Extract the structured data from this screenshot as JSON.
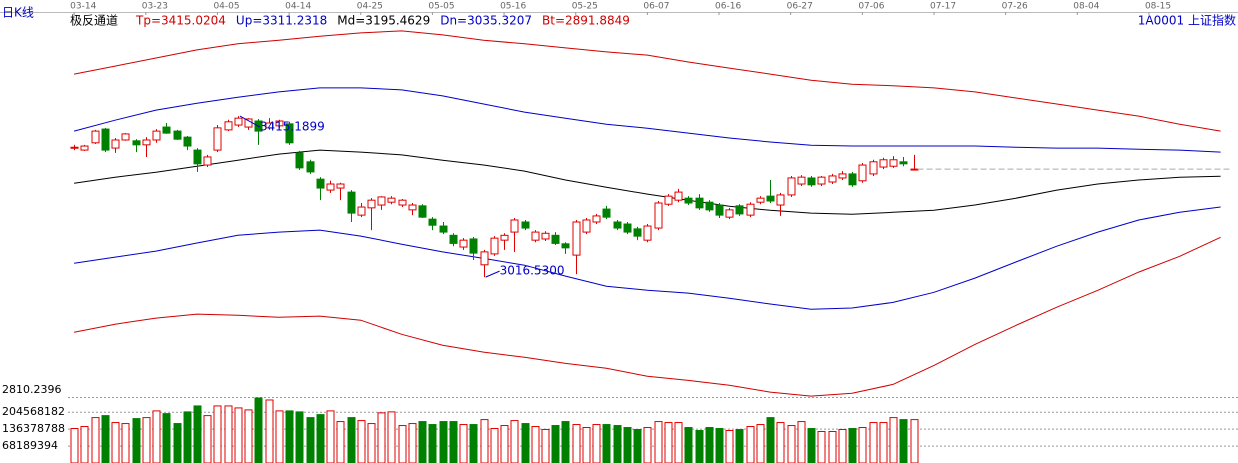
{
  "chart_data": {
    "type": "candlestick",
    "title": "极反通道",
    "period_label": "日K线",
    "symbol_label": "1A0001 上证指数",
    "price_axis_label": "2810.2396",
    "xlim": [
      -0.6,
      113.7
    ],
    "xticks": [
      {
        "value": 0,
        "label": "03-14"
      },
      {
        "value": 7,
        "label": "03-23"
      },
      {
        "value": 14,
        "label": "04-05"
      },
      {
        "value": 21,
        "label": "04-14"
      },
      {
        "value": 28,
        "label": "04-25"
      },
      {
        "value": 35,
        "label": "05-05"
      },
      {
        "value": 42,
        "label": "05-16"
      },
      {
        "value": 49,
        "label": "05-25"
      },
      {
        "value": 56,
        "label": "06-07"
      },
      {
        "value": 63,
        "label": "06-16"
      },
      {
        "value": 70,
        "label": "06-27"
      },
      {
        "value": 77,
        "label": "07-06"
      },
      {
        "value": 84,
        "label": "07-17"
      },
      {
        "value": 91,
        "label": "07-26"
      },
      {
        "value": 98,
        "label": "08-04"
      },
      {
        "value": 105,
        "label": "08-15"
      }
    ],
    "ylim": [
      2700,
      3653
    ],
    "up_color": "#e00000",
    "down_color": "#008000",
    "candles": {
      "open": [
        3336,
        3331,
        3349,
        3383,
        3336,
        3356,
        3354,
        3344,
        3356,
        3388,
        3378,
        3363,
        3331,
        3294,
        3331,
        3381,
        3393,
        3388,
        3403,
        3386,
        3391,
        3396,
        3324,
        3302,
        3259,
        3232,
        3237,
        3227,
        3170,
        3188,
        3195,
        3202,
        3195,
        3183,
        3193,
        3160,
        3143,
        3120,
        3091,
        3111,
        3047,
        3074,
        3108,
        3128,
        3153,
        3108,
        3111,
        3120,
        3099,
        3071,
        3128,
        3153,
        3185,
        3153,
        3148,
        3136,
        3108,
        3138,
        3197,
        3207,
        3212,
        3212,
        3202,
        3195,
        3165,
        3193,
        3170,
        3202,
        3217,
        3195,
        3220,
        3247,
        3262,
        3247,
        3252,
        3262,
        3272,
        3255,
        3272,
        3289,
        3291,
        3302,
        3282
      ],
      "high": [
        3344,
        3344,
        3381,
        3386,
        3361,
        3373,
        3358,
        3363,
        3383,
        3398,
        3381,
        3366,
        3336,
        3319,
        3393,
        3406,
        3415.1899,
        3410,
        3408,
        3410,
        3406,
        3401,
        3329,
        3307,
        3264,
        3255,
        3250,
        3232,
        3200,
        3212,
        3217,
        3217,
        3210,
        3200,
        3197,
        3165,
        3153,
        3125,
        3113,
        3116,
        3084,
        3118,
        3125,
        3163,
        3158,
        3133,
        3130,
        3128,
        3103,
        3158,
        3163,
        3173,
        3193,
        3158,
        3153,
        3141,
        3148,
        3205,
        3222,
        3235,
        3217,
        3222,
        3207,
        3200,
        3188,
        3197,
        3202,
        3217,
        3257,
        3225,
        3267,
        3269,
        3267,
        3267,
        3272,
        3279,
        3277,
        3299,
        3307,
        3312,
        3316,
        3314,
        3319
      ],
      "low": [
        3331,
        3329,
        3346,
        3326,
        3324,
        3354,
        3326,
        3314,
        3349,
        3371,
        3356,
        3331,
        3277,
        3289,
        3326,
        3378,
        3388,
        3381,
        3344,
        3381,
        3386,
        3344,
        3282,
        3272,
        3207,
        3225,
        3207,
        3153,
        3165,
        3133,
        3183,
        3197,
        3190,
        3170,
        3163,
        3133,
        3123,
        3093,
        3084,
        3059,
        3016.53,
        3069,
        3084,
        3079,
        3133,
        3103,
        3106,
        3096,
        3074,
        3024,
        3123,
        3148,
        3160,
        3133,
        3123,
        3108,
        3103,
        3133,
        3193,
        3202,
        3195,
        3183,
        3178,
        3163,
        3160,
        3168,
        3165,
        3197,
        3200,
        3168,
        3215,
        3242,
        3240,
        3242,
        3247,
        3257,
        3240,
        3250,
        3267,
        3284,
        3287,
        3291,
        3282
      ],
      "close": [
        3338,
        3341,
        3378,
        3331,
        3356,
        3371,
        3344,
        3356,
        3378,
        3373,
        3358,
        3341,
        3297,
        3314,
        3386,
        3401,
        3410,
        3408,
        3378,
        3398,
        3403,
        3349,
        3287,
        3277,
        3237,
        3247,
        3247,
        3175,
        3190,
        3207,
        3215,
        3212,
        3207,
        3195,
        3165,
        3145,
        3128,
        3100,
        3108,
        3076,
        3079,
        3113,
        3120,
        3158,
        3138,
        3128,
        3125,
        3100,
        3089,
        3153,
        3158,
        3168,
        3165,
        3138,
        3128,
        3118,
        3143,
        3200,
        3217,
        3227,
        3200,
        3188,
        3183,
        3170,
        3183,
        3173,
        3197,
        3212,
        3205,
        3220,
        3262,
        3264,
        3245,
        3264,
        3267,
        3272,
        3245,
        3294,
        3302,
        3307,
        3307,
        3297,
        3284
      ]
    },
    "annotations": [
      {
        "value": 3415.1899,
        "label": "3415.1899"
      },
      {
        "value": 3016.53,
        "label": "3016.5300"
      }
    ],
    "bands": {
      "x": [
        0,
        4,
        8,
        12,
        16,
        20,
        24,
        28,
        32,
        36,
        40,
        44,
        48,
        52,
        56,
        60,
        64,
        68,
        72,
        76,
        80,
        84,
        88,
        92,
        96,
        100,
        104,
        108,
        112
      ],
      "series": [
        {
          "name": "Tp=3415.0204",
          "color": "#d00000",
          "values": [
            3519,
            3539,
            3559,
            3579,
            3594,
            3603,
            3613,
            3621,
            3626,
            3616,
            3603,
            3594,
            3584,
            3574,
            3566,
            3549,
            3534,
            3519,
            3504,
            3494,
            3490,
            3485,
            3475,
            3460,
            3445,
            3430,
            3415,
            3395,
            3378
          ]
        },
        {
          "name": "Up=3311.2318",
          "color": "#0000c8",
          "values": [
            3378,
            3405,
            3430,
            3447,
            3462,
            3475,
            3485,
            3485,
            3480,
            3465,
            3445,
            3425,
            3410,
            3395,
            3385,
            3373,
            3361,
            3351,
            3343,
            3341,
            3341,
            3341,
            3341,
            3338,
            3336,
            3336,
            3333,
            3331,
            3326
          ]
        },
        {
          "name": "Md=3195.4629",
          "color": "#000000",
          "values": [
            3249,
            3264,
            3276,
            3291,
            3306,
            3321,
            3331,
            3326,
            3319,
            3306,
            3294,
            3279,
            3257,
            3239,
            3222,
            3207,
            3192,
            3182,
            3175,
            3172,
            3177,
            3182,
            3195,
            3212,
            3232,
            3247,
            3257,
            3264,
            3266
          ]
        },
        {
          "name": "Dn=3035.3207",
          "color": "#0000c8",
          "values": [
            3051,
            3066,
            3081,
            3101,
            3120,
            3128,
            3133,
            3118,
            3098,
            3079,
            3063,
            3046,
            3019,
            2994,
            2984,
            2977,
            2964,
            2950,
            2937,
            2940,
            2954,
            2979,
            3014,
            3054,
            3093,
            3128,
            3158,
            3177,
            3190
          ]
        },
        {
          "name": "Bt=2891.8849",
          "color": "#d00000",
          "values": [
            2880,
            2900,
            2915,
            2925,
            2922,
            2917,
            2920,
            2910,
            2875,
            2848,
            2831,
            2818,
            2803,
            2791,
            2771,
            2761,
            2749,
            2732,
            2722,
            2729,
            2751,
            2798,
            2850,
            2897,
            2942,
            2984,
            3029,
            3068,
            3115
          ]
        }
      ]
    },
    "volume": {
      "ylim": [
        0,
        266000000
      ],
      "yticks": [
        68189394,
        136378788,
        204568182
      ],
      "values": [
        139000000,
        147000000,
        183000000,
        191000000,
        163000000,
        159000000,
        179000000,
        183000000,
        210000000,
        199000000,
        159000000,
        206000000,
        230000000,
        191000000,
        230000000,
        230000000,
        222000000,
        214000000,
        262000000,
        254000000,
        210000000,
        210000000,
        206000000,
        183000000,
        195000000,
        210000000,
        167000000,
        183000000,
        171000000,
        159000000,
        202000000,
        206000000,
        151000000,
        159000000,
        167000000,
        155000000,
        167000000,
        167000000,
        155000000,
        155000000,
        175000000,
        139000000,
        151000000,
        171000000,
        159000000,
        147000000,
        135000000,
        151000000,
        167000000,
        155000000,
        143000000,
        155000000,
        155000000,
        151000000,
        143000000,
        135000000,
        143000000,
        167000000,
        163000000,
        163000000,
        143000000,
        131000000,
        143000000,
        139000000,
        131000000,
        135000000,
        147000000,
        155000000,
        183000000,
        163000000,
        151000000,
        167000000,
        139000000,
        127000000,
        127000000,
        135000000,
        139000000,
        143000000,
        163000000,
        163000000,
        183000000,
        175000000,
        175000000
      ]
    }
  }
}
